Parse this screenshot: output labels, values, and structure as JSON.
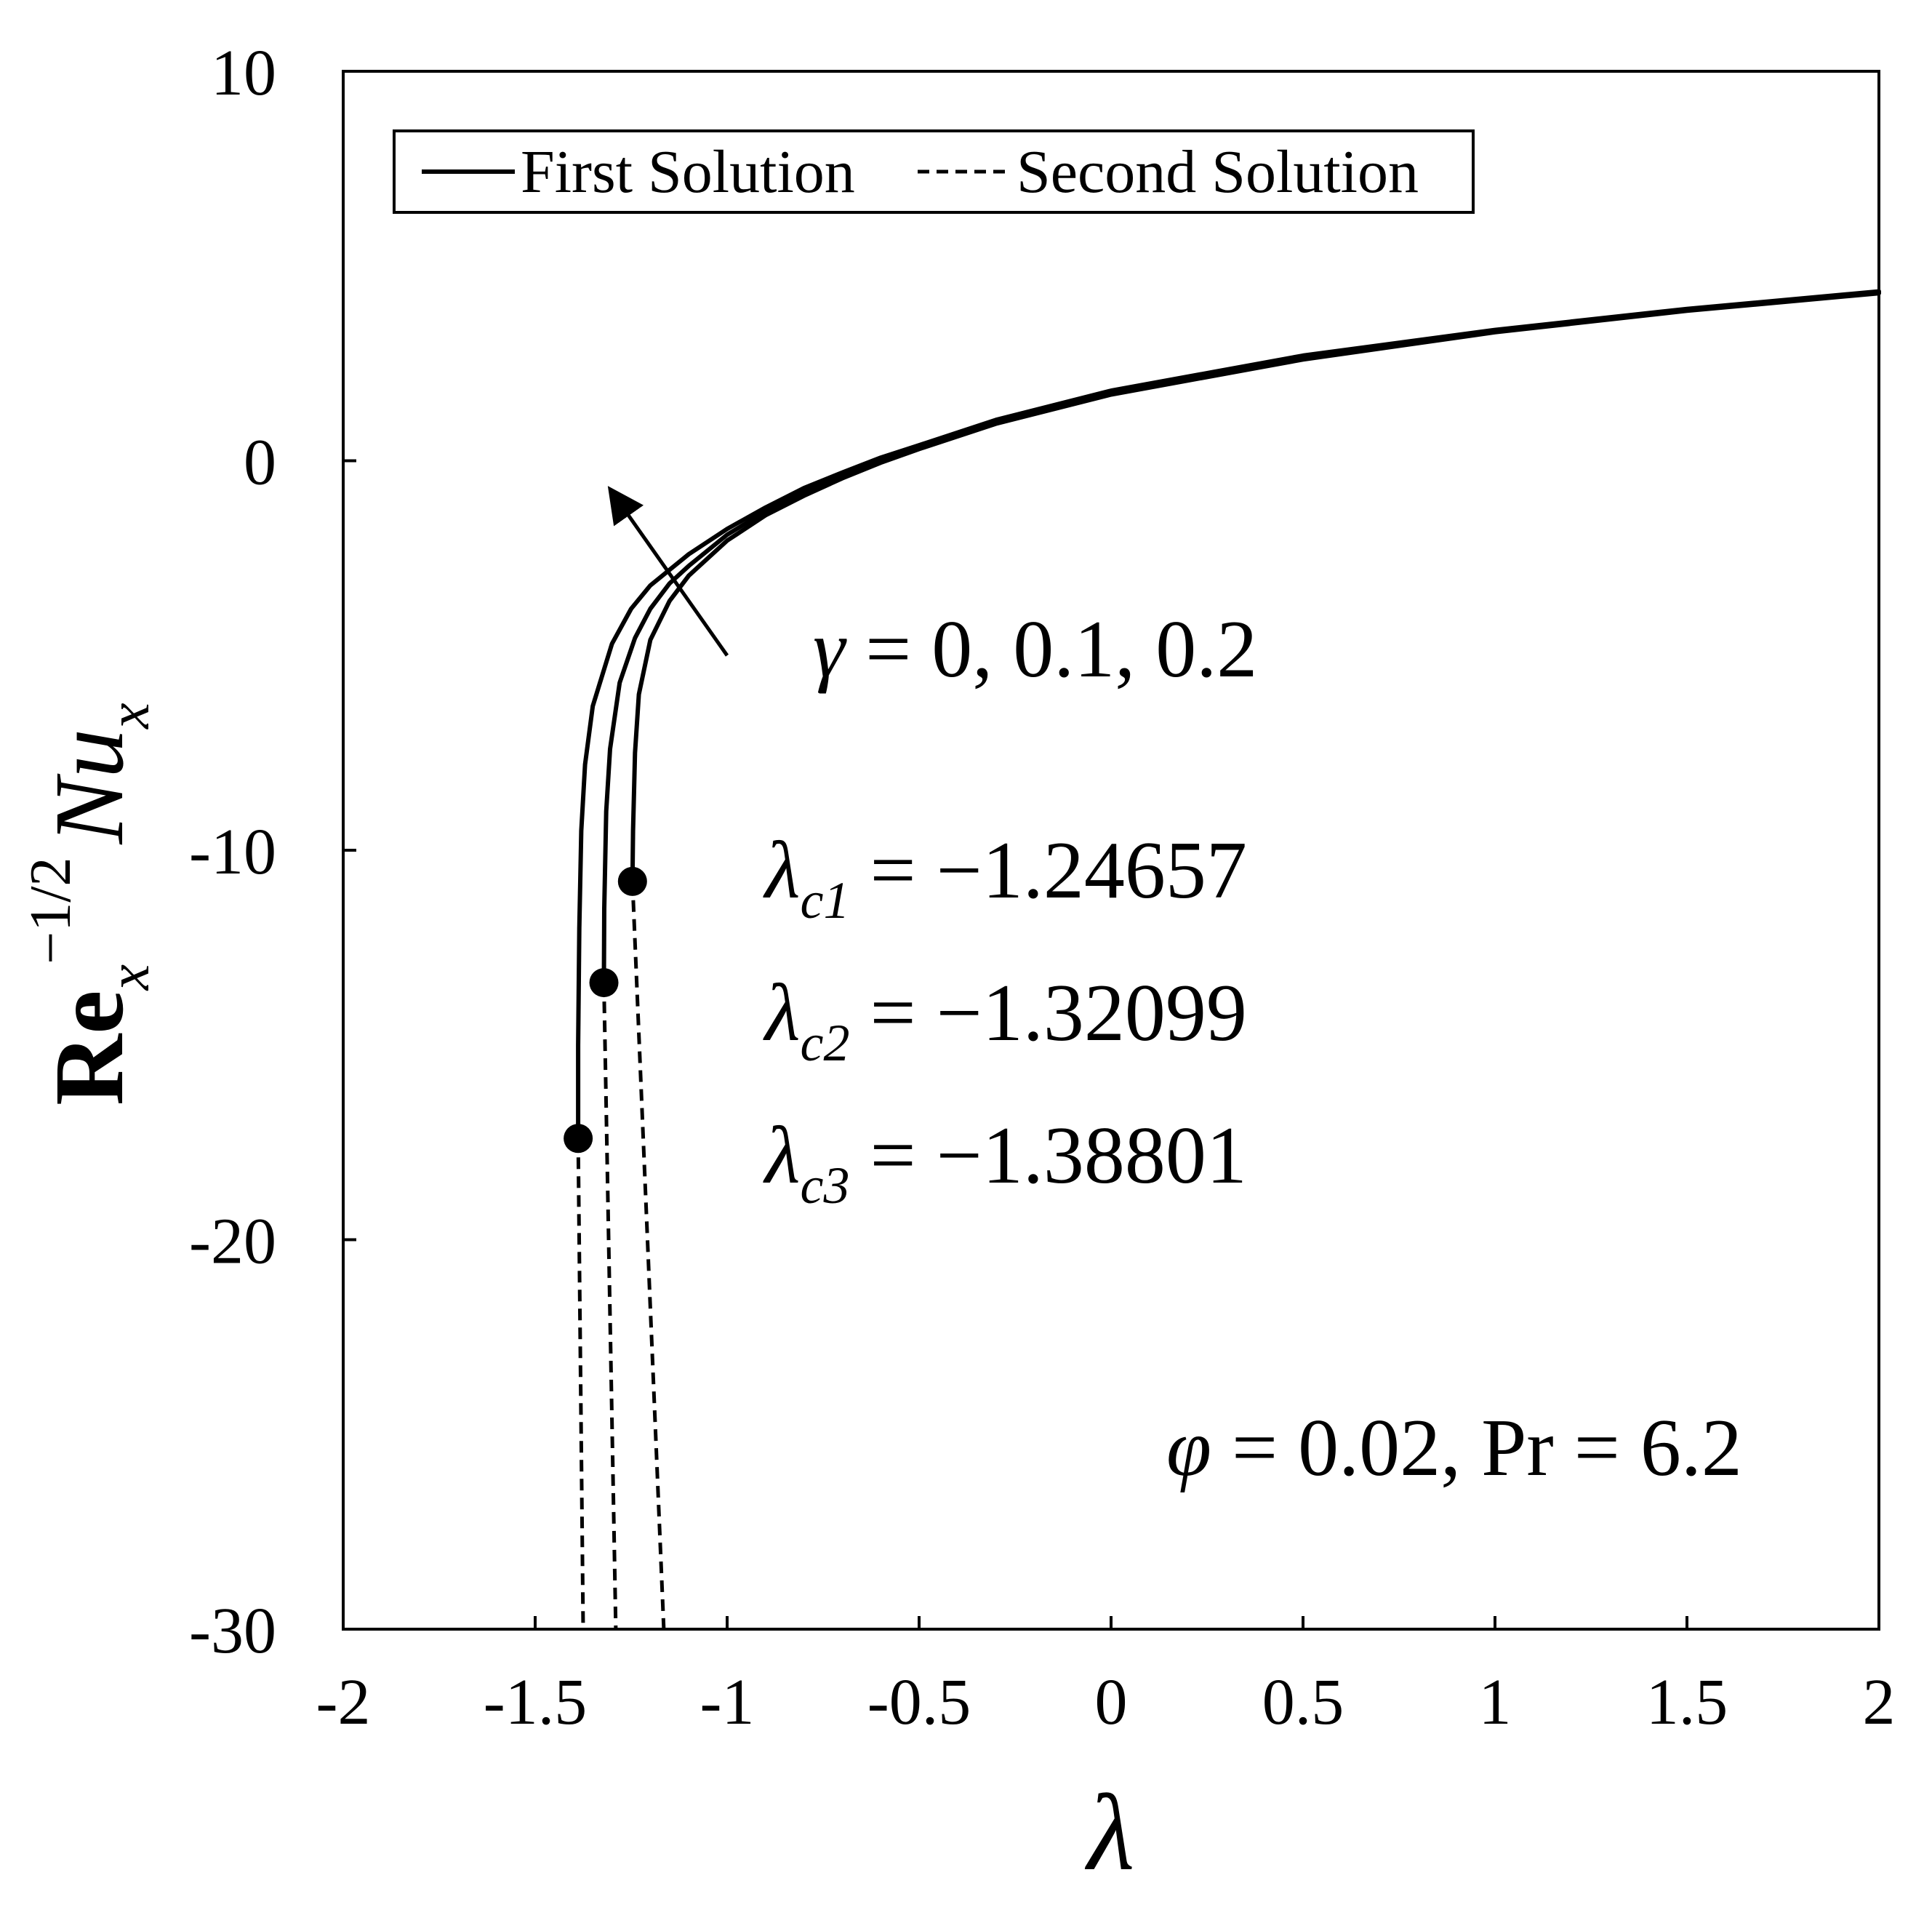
{
  "chart_data": {
    "type": "line",
    "title": "",
    "xlabel": "λ",
    "ylabel": {
      "base": "Re",
      "base_sub": "x",
      "sup": "−1/2",
      "second": "Nu",
      "second_sub": "x"
    },
    "xlim": [
      -2,
      2
    ],
    "ylim": [
      -30,
      10
    ],
    "x_ticks": [
      -2,
      -1.5,
      -1,
      -0.5,
      0,
      0.5,
      1,
      1.5,
      2
    ],
    "x_tick_labels": [
      "-2",
      "-1.5",
      "-1",
      "-0.5",
      "0",
      "0.5",
      "1",
      "1.5",
      "2"
    ],
    "y_ticks": [
      10,
      0,
      -10,
      -20,
      -30
    ],
    "y_tick_labels": [
      "10",
      "0",
      "-10",
      "-20",
      "-30"
    ],
    "grid": false,
    "legend": {
      "placement": "top-left",
      "entries": [
        {
          "label": "First Solution",
          "style": "solid"
        },
        {
          "label": "Second Solution",
          "style": "dashed"
        }
      ]
    },
    "series": [
      {
        "gamma": 0,
        "critical": {
          "x": -1.24657,
          "y": -10.8
        },
        "first_solution": [
          [
            -1.24657,
            -10.8
          ],
          [
            -1.245,
            -9.5
          ],
          [
            -1.24,
            -7.5
          ],
          [
            -1.23,
            -6.0
          ],
          [
            -1.2,
            -4.6
          ],
          [
            -1.15,
            -3.6
          ],
          [
            -1.1,
            -2.95
          ],
          [
            -1.0,
            -2.05
          ],
          [
            -0.9,
            -1.4
          ],
          [
            -0.8,
            -0.9
          ],
          [
            -0.7,
            -0.45
          ],
          [
            -0.6,
            -0.05
          ],
          [
            -0.5,
            0.3
          ],
          [
            -0.3,
            0.95
          ],
          [
            0,
            1.7
          ],
          [
            0.5,
            2.6
          ],
          [
            1.0,
            3.3
          ],
          [
            1.5,
            3.85
          ],
          [
            2.0,
            4.3
          ]
        ],
        "second_solution": [
          [
            -1.24657,
            -10.8
          ],
          [
            -1.165,
            -30
          ]
        ]
      },
      {
        "gamma": 0.1,
        "critical": {
          "x": -1.32099,
          "y": -13.4
        },
        "first_solution": [
          [
            -1.32099,
            -13.4
          ],
          [
            -1.32,
            -11.5
          ],
          [
            -1.315,
            -9.0
          ],
          [
            -1.305,
            -7.4
          ],
          [
            -1.28,
            -5.7
          ],
          [
            -1.24,
            -4.55
          ],
          [
            -1.2,
            -3.8
          ],
          [
            -1.15,
            -3.15
          ],
          [
            -1.1,
            -2.7
          ],
          [
            -1.0,
            -1.9
          ],
          [
            -0.9,
            -1.3
          ],
          [
            -0.8,
            -0.8
          ],
          [
            -0.7,
            -0.38
          ],
          [
            -0.6,
            0.02
          ],
          [
            -0.5,
            0.35
          ],
          [
            -0.3,
            1.0
          ],
          [
            0,
            1.75
          ],
          [
            0.5,
            2.65
          ],
          [
            1.0,
            3.33
          ],
          [
            1.5,
            3.88
          ],
          [
            2.0,
            4.32
          ]
        ],
        "second_solution": [
          [
            -1.32099,
            -13.4
          ],
          [
            -1.29,
            -30
          ]
        ]
      },
      {
        "gamma": 0.2,
        "critical": {
          "x": -1.38801,
          "y": -17.4
        },
        "first_solution": [
          [
            -1.38801,
            -17.4
          ],
          [
            -1.388,
            -15.0
          ],
          [
            -1.385,
            -12.0
          ],
          [
            -1.38,
            -9.5
          ],
          [
            -1.37,
            -7.8
          ],
          [
            -1.35,
            -6.3
          ],
          [
            -1.3,
            -4.7
          ],
          [
            -1.25,
            -3.8
          ],
          [
            -1.2,
            -3.2
          ],
          [
            -1.1,
            -2.4
          ],
          [
            -1.0,
            -1.75
          ],
          [
            -0.9,
            -1.2
          ],
          [
            -0.8,
            -0.7
          ],
          [
            -0.7,
            -0.3
          ],
          [
            -0.6,
            0.08
          ],
          [
            -0.5,
            0.4
          ],
          [
            -0.3,
            1.05
          ],
          [
            0,
            1.8
          ],
          [
            0.5,
            2.7
          ],
          [
            1.0,
            3.36
          ],
          [
            1.5,
            3.9
          ],
          [
            2.0,
            4.35
          ]
        ],
        "second_solution": [
          [
            -1.38801,
            -17.4
          ],
          [
            -1.375,
            -30
          ]
        ]
      }
    ],
    "arrow": {
      "from": [
        -1.0,
        -5.0
      ],
      "to": [
        -1.3,
        -0.8
      ]
    },
    "annotations": {
      "gamma_sym": "γ",
      "gamma_rest": " = 0, 0.1, 0.2",
      "lambda_sym": "λ",
      "lambda_c": [
        {
          "sub": "c1",
          "value": " = −1.24657"
        },
        {
          "sub": "c2",
          "value": " = −1.32099"
        },
        {
          "sub": "c3",
          "value": " = −1.38801"
        }
      ],
      "params_phi": "φ",
      "params_eq1": " = 0.02, ",
      "params_pr": "Pr",
      "params_eq2": " = 6.2"
    }
  }
}
